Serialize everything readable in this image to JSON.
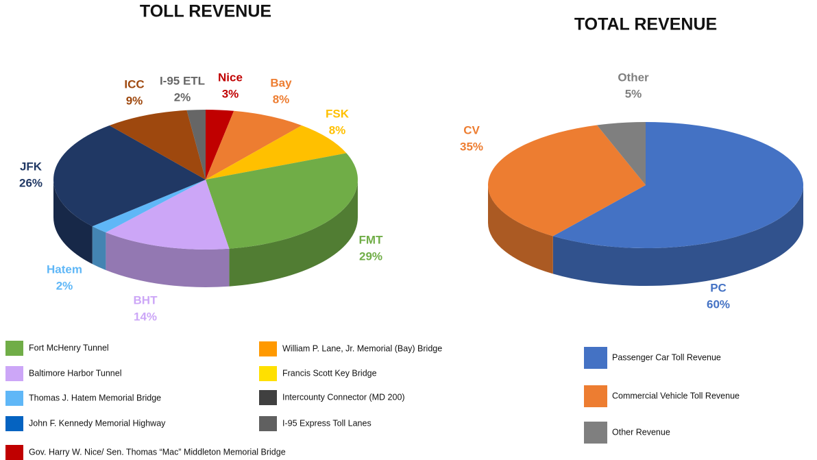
{
  "chart_data": [
    {
      "type": "pie",
      "title": "TOLL REVENUE",
      "categories": [
        "Nice",
        "Bay",
        "FSK",
        "FMT",
        "BHT",
        "Hatem",
        "JFK",
        "ICC",
        "I-95 ETL"
      ],
      "values": [
        3,
        8,
        8,
        29,
        14,
        2,
        26,
        9,
        2
      ],
      "value_labels": [
        "3%",
        "8%",
        "8%",
        "29%",
        "14%",
        "2%",
        "26%",
        "9%",
        "2%"
      ],
      "colors": [
        "#c00000",
        "#ed7d31",
        "#ffc000",
        "#70ad47",
        "#cca6f7",
        "#5fb7f7",
        "#203864",
        "#9e480e",
        "#666666"
      ],
      "legend": [
        {
          "name": "Fort McHenry Tunnel",
          "color": "#70ad47"
        },
        {
          "name": "Baltimore Harbor Tunnel",
          "color": "#cca6f7"
        },
        {
          "name": "Thomas J. Hatem Memorial Bridge",
          "color": "#5fb7f7"
        },
        {
          "name": "John F. Kennedy Memorial Highway",
          "color": "#0563c1"
        },
        {
          "name": "Gov. Harry W. Nice/ Sen. Thomas “Mac” Middleton Memorial Bridge",
          "color": "#c00000"
        },
        {
          "name": "William P. Lane, Jr. Memorial (Bay) Bridge",
          "color": "#ff9900"
        },
        {
          "name": "Francis Scott Key Bridge",
          "color": "#ffe000"
        },
        {
          "name": "Intercounty Connector (MD 200)",
          "color": "#404040"
        },
        {
          "name": "I-95 Express Toll Lanes",
          "color": "#606060"
        }
      ]
    },
    {
      "type": "pie",
      "title": "TOTAL REVENUE",
      "categories": [
        "PC",
        "CV",
        "Other"
      ],
      "values": [
        60,
        35,
        5
      ],
      "value_labels": [
        "60%",
        "35%",
        "5%"
      ],
      "colors": [
        "#4472c4",
        "#ed7d31",
        "#7f7f7f"
      ],
      "legend": [
        {
          "name": "Passenger Car Toll Revenue",
          "color": "#4472c4"
        },
        {
          "name": "Commercial Vehicle Toll Revenue",
          "color": "#ed7d31"
        },
        {
          "name": "Other Revenue",
          "color": "#7f7f7f"
        }
      ]
    }
  ]
}
